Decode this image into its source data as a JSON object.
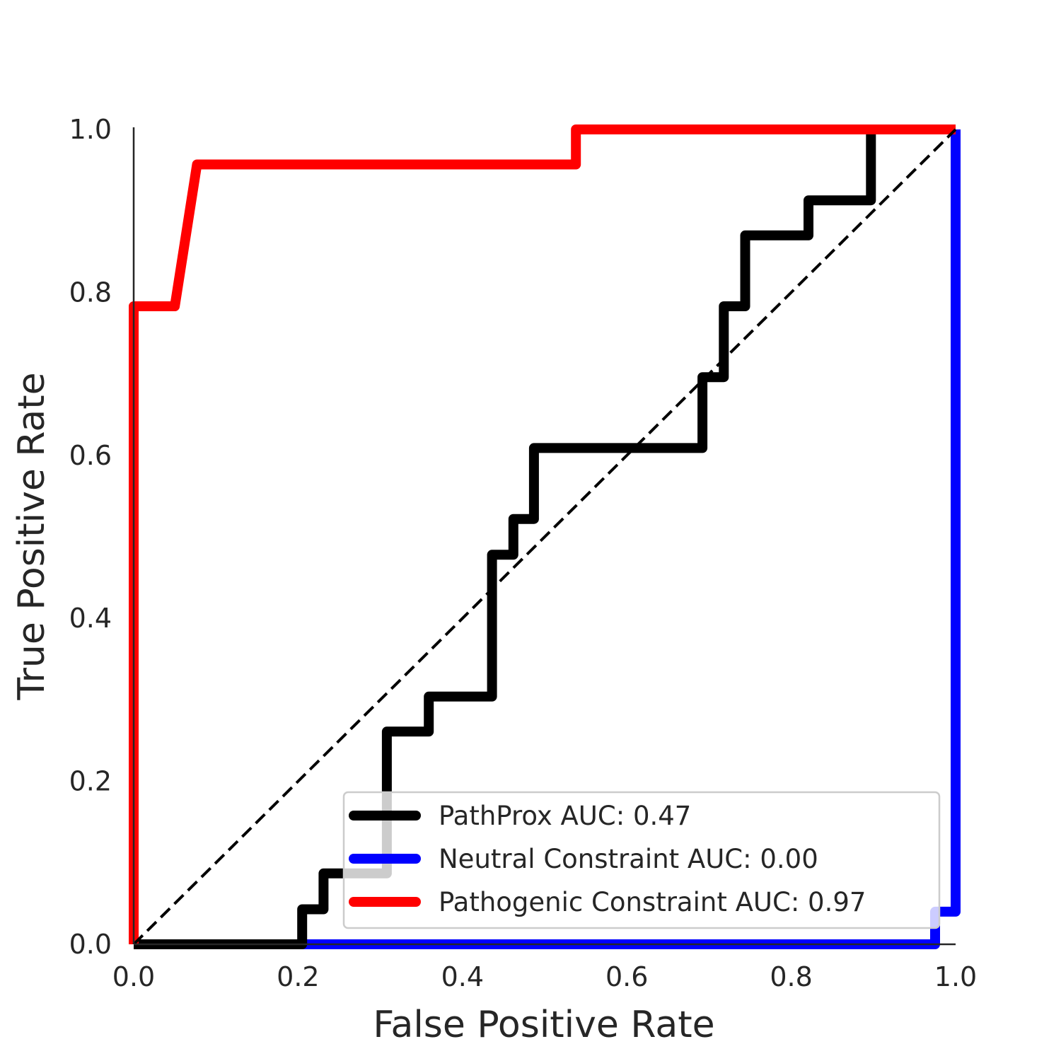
{
  "chart_data": {
    "type": "line",
    "title": "",
    "xlabel": "False Positive Rate",
    "ylabel": "True Positive Rate",
    "xlim": [
      0.0,
      1.0
    ],
    "ylim": [
      0.0,
      1.0
    ],
    "x_ticks": [
      "0.0",
      "0.2",
      "0.4",
      "0.6",
      "0.8",
      "1.0"
    ],
    "y_ticks": [
      "0.0",
      "0.2",
      "0.4",
      "0.6",
      "0.8",
      "1.0"
    ],
    "grid": false,
    "legend_position": "lower-right",
    "diagonal_reference": {
      "x": [
        0,
        1
      ],
      "y": [
        0,
        1
      ],
      "color": "#000000",
      "style": "dashed"
    },
    "series": [
      {
        "name": "PathProx AUC:  0.47",
        "color": "#000000",
        "x": [
          0.0,
          0.205,
          0.205,
          0.231,
          0.231,
          0.308,
          0.308,
          0.359,
          0.359,
          0.436,
          0.436,
          0.462,
          0.462,
          0.487,
          0.487,
          0.692,
          0.692,
          0.718,
          0.718,
          0.744,
          0.744,
          0.821,
          0.821,
          0.897,
          0.897,
          1.0
        ],
        "y": [
          0.0,
          0.0,
          0.043,
          0.043,
          0.087,
          0.087,
          0.261,
          0.261,
          0.304,
          0.304,
          0.478,
          0.478,
          0.522,
          0.522,
          0.609,
          0.609,
          0.696,
          0.696,
          0.783,
          0.783,
          0.87,
          0.87,
          0.913,
          0.913,
          1.0,
          1.0
        ]
      },
      {
        "name": "Neutral Constraint AUC:  0.00",
        "color": "#0000ff",
        "x": [
          0.0,
          0.975,
          0.975,
          1.0,
          1.0
        ],
        "y": [
          0.0,
          0.0,
          0.04,
          0.04,
          1.0
        ]
      },
      {
        "name": "Pathogenic Constraint AUC:  0.97",
        "color": "#ff0000",
        "x": [
          0.0,
          0.0,
          0.05,
          0.077,
          0.538,
          0.538,
          1.0
        ],
        "y": [
          0.0,
          0.783,
          0.783,
          0.957,
          0.957,
          1.0,
          1.0
        ]
      }
    ]
  }
}
